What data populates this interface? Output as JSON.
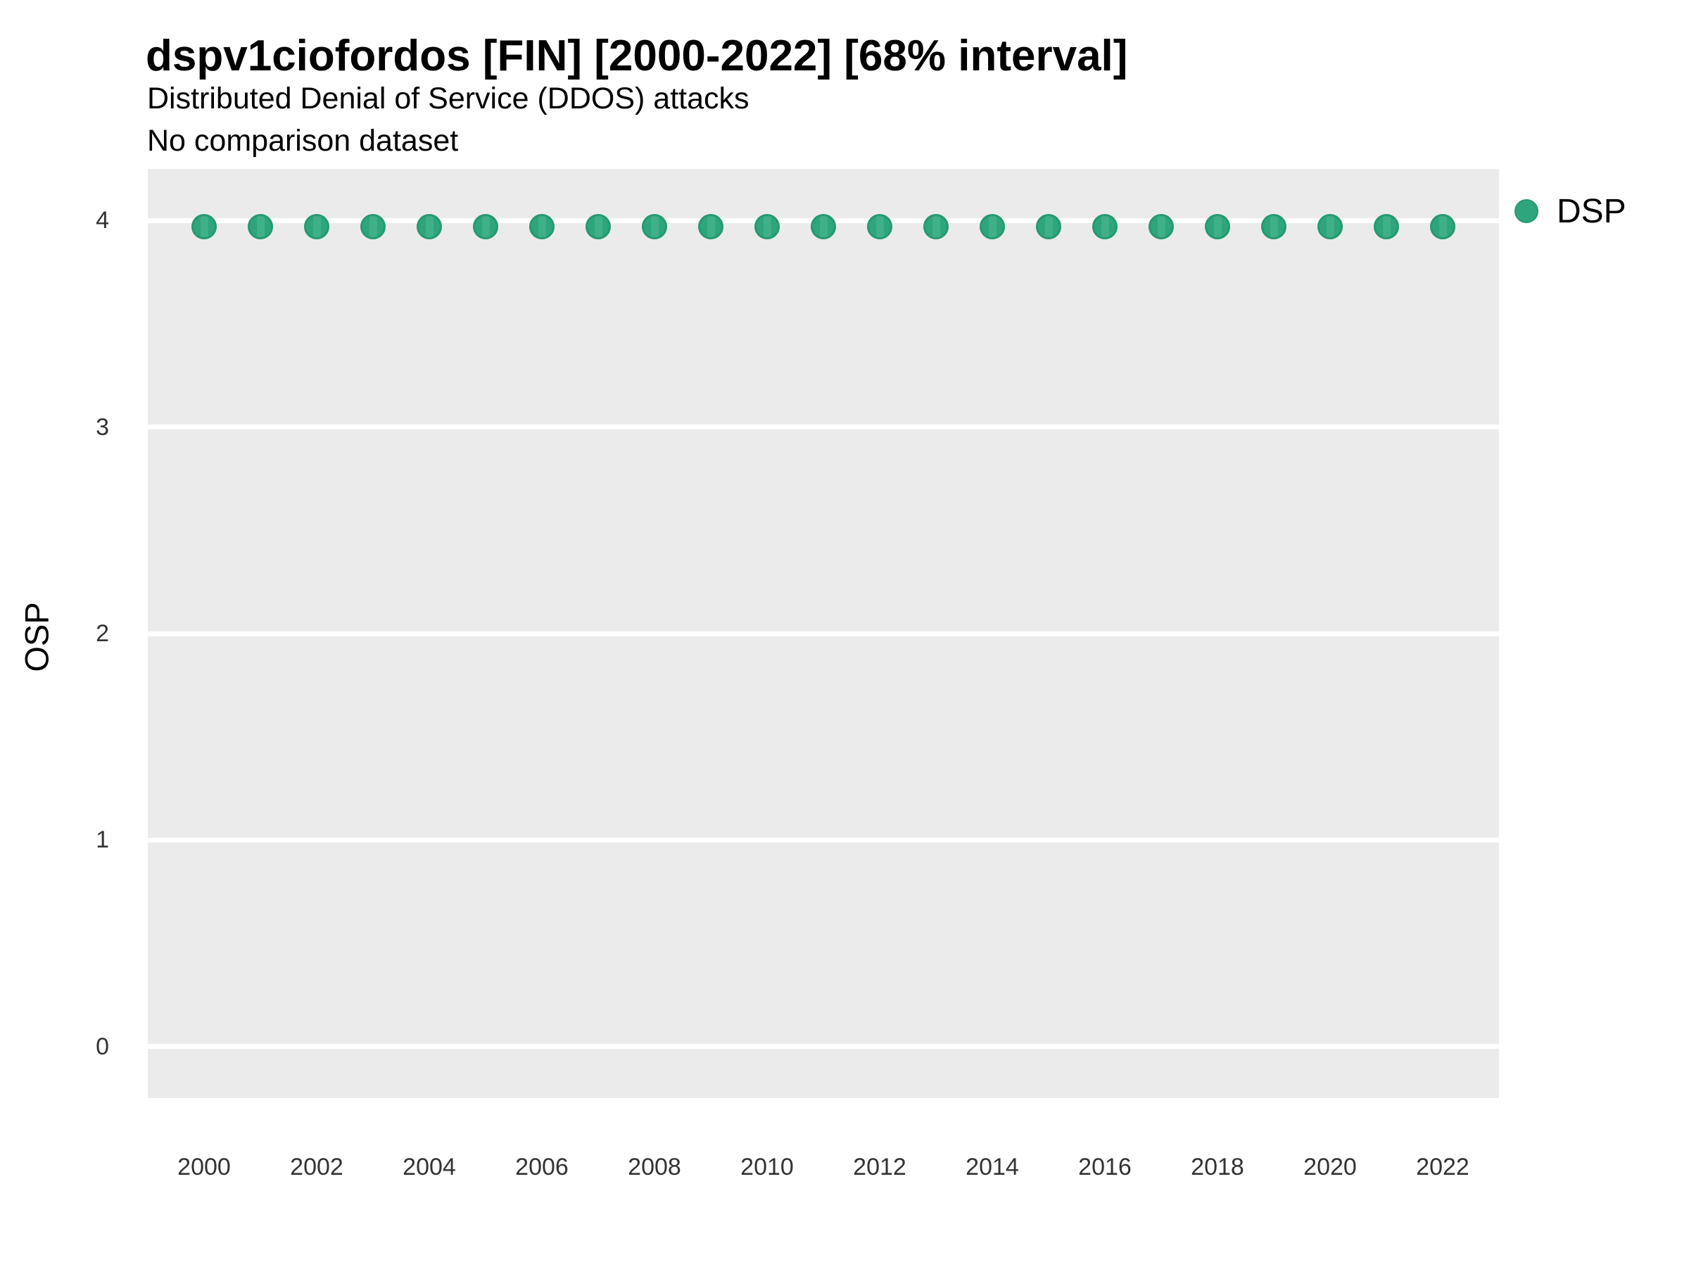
{
  "chart_data": {
    "type": "scatter",
    "title": "dspv1ciofordos [FIN] [2000-2022] [68% interval]",
    "subtitle": "Distributed Denial of Service (DDOS) attacks",
    "note": "No comparison dataset",
    "xlabel": "",
    "ylabel": "OSP",
    "x": [
      2000,
      2001,
      2002,
      2003,
      2004,
      2005,
      2006,
      2007,
      2008,
      2009,
      2010,
      2011,
      2012,
      2013,
      2014,
      2015,
      2016,
      2017,
      2018,
      2019,
      2020,
      2021,
      2022
    ],
    "series": [
      {
        "name": "DSP",
        "color": "#2EA57C",
        "values": [
          3.97,
          3.97,
          3.97,
          3.97,
          3.97,
          3.97,
          3.97,
          3.97,
          3.97,
          3.97,
          3.97,
          3.97,
          3.97,
          3.97,
          3.97,
          3.97,
          3.97,
          3.97,
          3.97,
          3.97,
          3.97,
          3.97,
          3.97
        ]
      }
    ],
    "xticks": [
      2000,
      2002,
      2004,
      2006,
      2008,
      2010,
      2012,
      2014,
      2016,
      2018,
      2020,
      2022
    ],
    "yticks": [
      0,
      1,
      2,
      3,
      4
    ],
    "xlim": [
      1999,
      2023
    ],
    "ylim": [
      -0.25,
      4.25
    ],
    "grid": "horizontal major gridlines only, white on gray panel",
    "legend_position": "right-top",
    "panel_background": "#EBEBEB",
    "gridline_color": "#FFFFFF",
    "interval_note": "68% interval bars are nearly zero height; visible only as a faint vertical stripe inside each point"
  }
}
